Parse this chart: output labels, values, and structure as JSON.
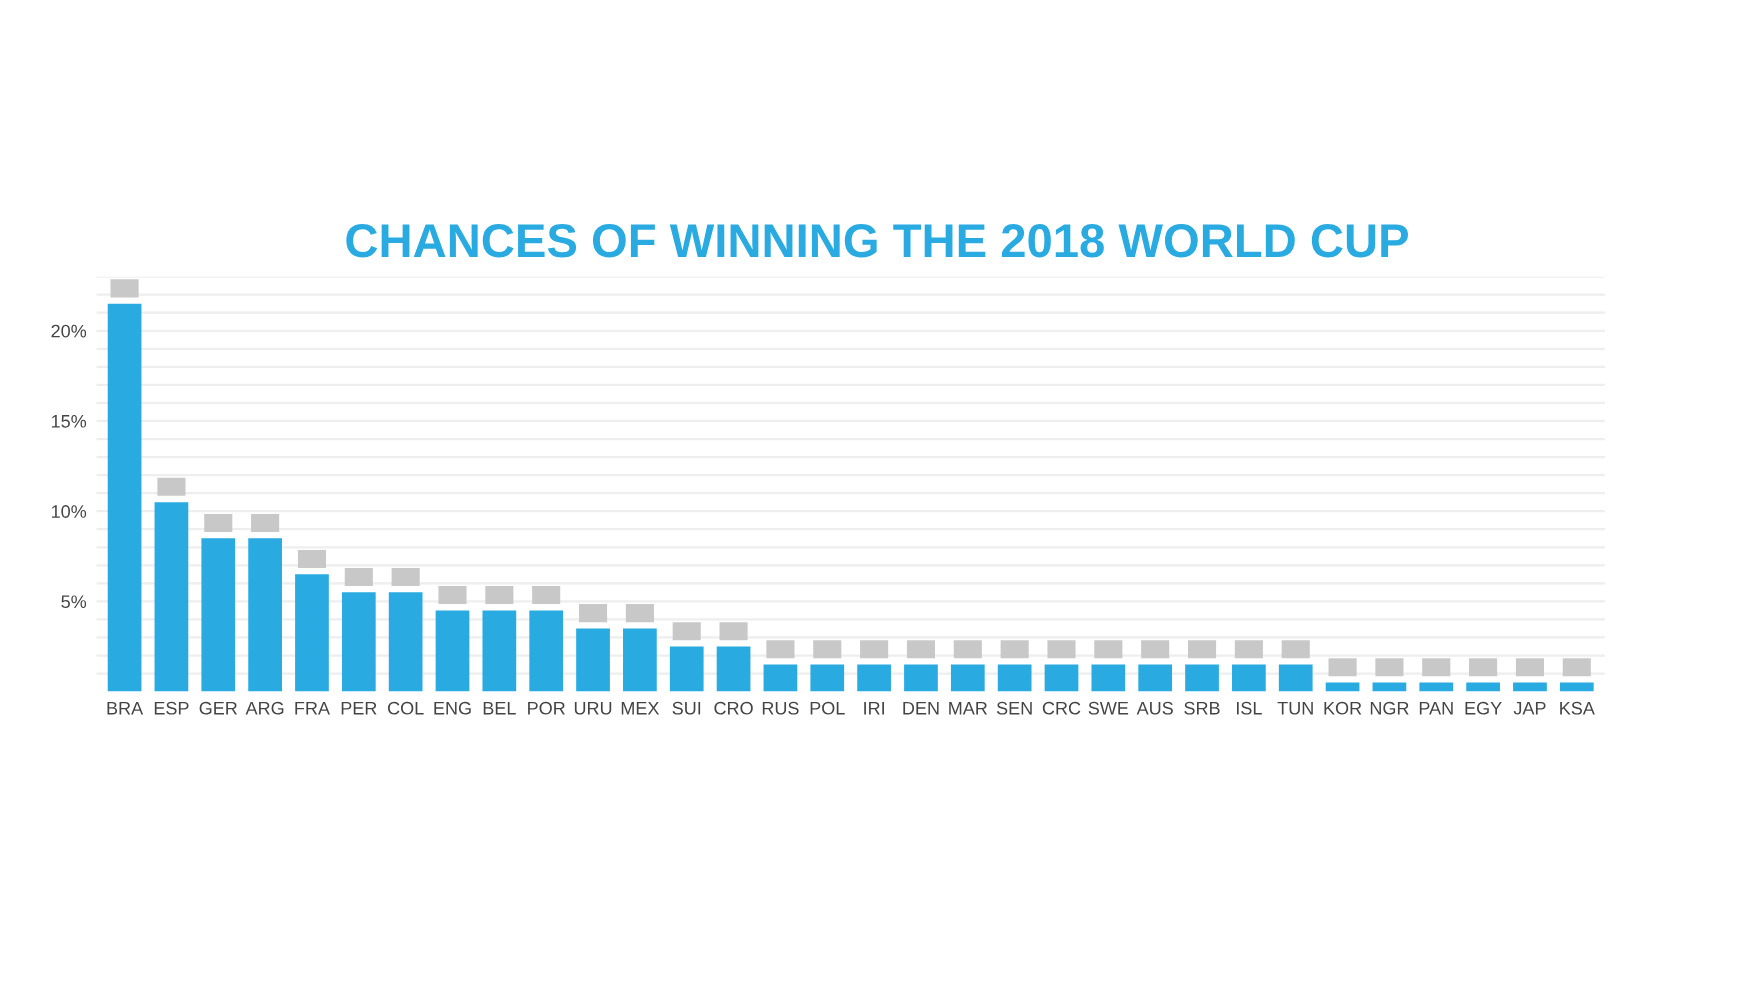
{
  "chart_data": {
    "type": "bar",
    "title": "CHANCES OF WINNING THE 2018 WORLD CUP",
    "categories": [
      "BRA",
      "ESP",
      "GER",
      "ARG",
      "FRA",
      "PER",
      "COL",
      "ENG",
      "BEL",
      "POR",
      "URU",
      "MEX",
      "SUI",
      "CRO",
      "RUS",
      "POL",
      "IRI",
      "DEN",
      "MAR",
      "SEN",
      "CRC",
      "SWE",
      "AUS",
      "SRB",
      "ISL",
      "TUN",
      "KOR",
      "NGR",
      "PAN",
      "EGY",
      "JAP",
      "KSA"
    ],
    "values": [
      21.5,
      10.5,
      8.5,
      8.5,
      6.5,
      5.5,
      5.5,
      4.5,
      4.5,
      4.5,
      3.5,
      3.5,
      2.5,
      2.5,
      1.5,
      1.5,
      1.5,
      1.5,
      1.5,
      1.5,
      1.5,
      1.5,
      1.5,
      1.5,
      1.5,
      1.5,
      0.5,
      0.5,
      0.5,
      0.5,
      0.5,
      0.5
    ],
    "color": "#29abe2",
    "ylim": [
      0,
      23
    ],
    "yticks": [
      {
        "value": 1,
        "label": null
      },
      {
        "value": 2,
        "label": null
      },
      {
        "value": 3,
        "label": null
      },
      {
        "value": 4,
        "label": null
      },
      {
        "value": 5,
        "label": "5%"
      },
      {
        "value": 6,
        "label": null
      },
      {
        "value": 7,
        "label": null
      },
      {
        "value": 8,
        "label": null
      },
      {
        "value": 9,
        "label": null
      },
      {
        "value": 10,
        "label": "10%"
      },
      {
        "value": 11,
        "label": null
      },
      {
        "value": 12,
        "label": null
      },
      {
        "value": 13,
        "label": null
      },
      {
        "value": 14,
        "label": null
      },
      {
        "value": 15,
        "label": "15%"
      },
      {
        "value": 16,
        "label": null
      },
      {
        "value": 17,
        "label": null
      },
      {
        "value": 18,
        "label": null
      },
      {
        "value": 19,
        "label": null
      },
      {
        "value": 20,
        "label": "20%"
      },
      {
        "value": 21,
        "label": null
      },
      {
        "value": 22,
        "label": null
      },
      {
        "value": 23,
        "label": null
      }
    ],
    "grid": "y"
  }
}
